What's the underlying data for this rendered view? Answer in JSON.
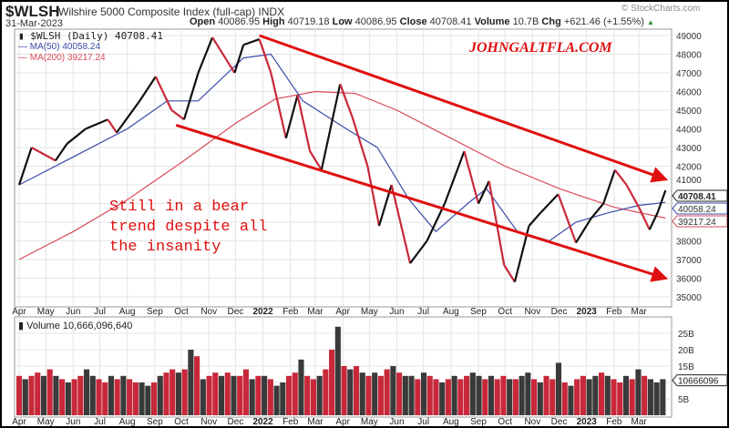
{
  "header": {
    "symbol": "$WLSH",
    "description": "Wilshire 5000 Composite Index (full-cap) INDX",
    "date": "31-Mar-2023",
    "open_label": "Open",
    "open": "40086.95",
    "high_label": "High",
    "high": "40719.18",
    "low_label": "Low",
    "low": "40086.95",
    "close_label": "Close",
    "close": "40708.41",
    "volume_label": "Volume",
    "volume": "10.7B",
    "chg_label": "Chg",
    "chg": "+621.46 (+1.55%)",
    "chg_icon": "up-triangle-icon",
    "source": "© StockCharts.com"
  },
  "watermark": "JOHNGALTFLA.COM",
  "annotation": [
    "Still in a bear",
    "trend despite all",
    "the insanity"
  ],
  "legend": {
    "price": "$WLSH (Daily) 40708.41",
    "ma50": "MA(50) 40058.24",
    "ma200": "MA(200) 39217.24",
    "volume": "Volume 10,666,096,640"
  },
  "colors": {
    "up": "#111111",
    "down": "#c8283a",
    "ma50": "#3a4aa8",
    "ma200": "#d84a5a",
    "arrow": "#e01010",
    "grid": "#e4e4e4"
  },
  "chart_data": [
    {
      "type": "line",
      "title": "$WLSH (Daily)",
      "ylim": [
        34500,
        49600
      ],
      "yticks": [
        "49000",
        "48000",
        "47000",
        "46000",
        "45000",
        "44000",
        "43000",
        "42000",
        "41000",
        "38000",
        "37000",
        "36000",
        "35000"
      ],
      "xticks": [
        {
          "d": "2021-04-01",
          "l": "Apr"
        },
        {
          "d": "2021-05-01",
          "l": "May"
        },
        {
          "d": "2021-06-01",
          "l": "Jun"
        },
        {
          "d": "2021-07-01",
          "l": "Jul"
        },
        {
          "d": "2021-08-01",
          "l": "Aug"
        },
        {
          "d": "2021-09-01",
          "l": "Sep"
        },
        {
          "d": "2021-10-01",
          "l": "Oct"
        },
        {
          "d": "2021-11-01",
          "l": "Nov"
        },
        {
          "d": "2021-12-01",
          "l": "Dec"
        },
        {
          "d": "2022-01-01",
          "l": "2022"
        },
        {
          "d": "2022-02-01",
          "l": "Feb"
        },
        {
          "d": "2022-03-01",
          "l": "Mar"
        },
        {
          "d": "2022-04-01",
          "l": "Apr"
        },
        {
          "d": "2022-05-01",
          "l": "May"
        },
        {
          "d": "2022-06-01",
          "l": "Jun"
        },
        {
          "d": "2022-07-01",
          "l": "Jul"
        },
        {
          "d": "2022-08-01",
          "l": "Aug"
        },
        {
          "d": "2022-09-01",
          "l": "Sep"
        },
        {
          "d": "2022-10-01",
          "l": "Oct"
        },
        {
          "d": "2022-11-01",
          "l": "Nov"
        },
        {
          "d": "2022-12-01",
          "l": "Dec"
        },
        {
          "d": "2023-01-01",
          "l": "2023"
        },
        {
          "d": "2023-02-01",
          "l": "Feb"
        },
        {
          "d": "2023-03-01",
          "l": "Mar"
        }
      ],
      "series": [
        {
          "name": "$WLSH",
          "points": [
            [
              "2021-04-01",
              41000
            ],
            [
              "2021-04-15",
              43000
            ],
            [
              "2021-05-12",
              42300
            ],
            [
              "2021-05-25",
              43200
            ],
            [
              "2021-06-15",
              44000
            ],
            [
              "2021-07-10",
              44500
            ],
            [
              "2021-07-20",
              43800
            ],
            [
              "2021-08-15",
              45500
            ],
            [
              "2021-09-02",
              46800
            ],
            [
              "2021-09-20",
              45000
            ],
            [
              "2021-10-04",
              44500
            ],
            [
              "2021-10-20",
              47000
            ],
            [
              "2021-11-05",
              48900
            ],
            [
              "2021-11-30",
              47000
            ],
            [
              "2021-12-10",
              48500
            ],
            [
              "2021-12-28",
              48800
            ],
            [
              "2022-01-10",
              47000
            ],
            [
              "2022-01-27",
              43500
            ],
            [
              "2022-02-09",
              45800
            ],
            [
              "2022-02-23",
              42800
            ],
            [
              "2022-03-08",
              41800
            ],
            [
              "2022-03-29",
              46400
            ],
            [
              "2022-04-12",
              44600
            ],
            [
              "2022-04-29",
              42000
            ],
            [
              "2022-05-12",
              38800
            ],
            [
              "2022-05-26",
              41000
            ],
            [
              "2022-06-16",
              36800
            ],
            [
              "2022-07-05",
              38000
            ],
            [
              "2022-07-25",
              40000
            ],
            [
              "2022-08-16",
              42800
            ],
            [
              "2022-09-01",
              40000
            ],
            [
              "2022-09-13",
              41200
            ],
            [
              "2022-09-30",
              36700
            ],
            [
              "2022-10-12",
              35800
            ],
            [
              "2022-10-28",
              38800
            ],
            [
              "2022-11-10",
              39500
            ],
            [
              "2022-11-30",
              40500
            ],
            [
              "2022-12-20",
              37900
            ],
            [
              "2023-01-06",
              39200
            ],
            [
              "2023-01-20",
              40000
            ],
            [
              "2023-02-02",
              41800
            ],
            [
              "2023-02-15",
              41000
            ],
            [
              "2023-03-01",
              39800
            ],
            [
              "2023-03-13",
              38600
            ],
            [
              "2023-03-22",
              39500
            ],
            [
              "2023-03-31",
              40708.41
            ]
          ]
        },
        {
          "name": "MA(50)",
          "points": [
            [
              "2021-04-01",
              41000
            ],
            [
              "2021-06-01",
              42500
            ],
            [
              "2021-08-01",
              44000
            ],
            [
              "2021-09-15",
              45500
            ],
            [
              "2021-10-20",
              45500
            ],
            [
              "2021-12-10",
              47800
            ],
            [
              "2022-01-10",
              48000
            ],
            [
              "2022-02-15",
              45500
            ],
            [
              "2022-04-05",
              44000
            ],
            [
              "2022-05-10",
              43000
            ],
            [
              "2022-06-15",
              40200
            ],
            [
              "2022-07-15",
              38500
            ],
            [
              "2022-08-20",
              40000
            ],
            [
              "2022-09-10",
              40800
            ],
            [
              "2022-10-15",
              38500
            ],
            [
              "2022-11-20",
              38000
            ],
            [
              "2022-12-20",
              39000
            ],
            [
              "2023-01-25",
              39500
            ],
            [
              "2023-03-01",
              39900
            ],
            [
              "2023-03-31",
              40058.24
            ]
          ]
        },
        {
          "name": "MA(200)",
          "points": [
            [
              "2021-04-01",
              37000
            ],
            [
              "2021-06-01",
              38500
            ],
            [
              "2021-08-01",
              40200
            ],
            [
              "2021-10-01",
              42200
            ],
            [
              "2021-12-01",
              44300
            ],
            [
              "2022-01-15",
              45600
            ],
            [
              "2022-03-01",
              46000
            ],
            [
              "2022-04-15",
              45900
            ],
            [
              "2022-06-01",
              45000
            ],
            [
              "2022-08-01",
              43500
            ],
            [
              "2022-10-01",
              42000
            ],
            [
              "2022-12-01",
              40800
            ],
            [
              "2023-02-01",
              39800
            ],
            [
              "2023-03-31",
              39217.24
            ]
          ]
        }
      ],
      "trendlines": [
        {
          "from": [
            "2021-12-28",
            49000
          ],
          "to": [
            "2023-03-31",
            41300
          ]
        },
        {
          "from": [
            "2021-09-25",
            44200
          ],
          "to": [
            "2023-03-31",
            36000
          ]
        }
      ],
      "value_badges": [
        "40708.41",
        "40058.24",
        "39217.24"
      ]
    },
    {
      "type": "bar",
      "title": "Volume",
      "ylim": [
        0,
        28
      ],
      "unit": "B",
      "yticks": [
        "25B",
        "20B",
        "15B",
        "5B"
      ],
      "value_badge": "10666096",
      "values": [
        12,
        11,
        12,
        13,
        12,
        14,
        12,
        11,
        10,
        11,
        12,
        14,
        12,
        11,
        10,
        12,
        11,
        12,
        11,
        10,
        10,
        9,
        10,
        12,
        13,
        14,
        13,
        14,
        20,
        18,
        11,
        12,
        13,
        12,
        13,
        12,
        12,
        14,
        11,
        12,
        12,
        11,
        9,
        10,
        12,
        13,
        17,
        12,
        11,
        12,
        14,
        20,
        27,
        15,
        14,
        15,
        13,
        12,
        13,
        12,
        14,
        15,
        13,
        12,
        12,
        11,
        13,
        12,
        11,
        10,
        11,
        12,
        11,
        12,
        13,
        12,
        11,
        12,
        11,
        12,
        11,
        11,
        12,
        13,
        11,
        10,
        12,
        11,
        16,
        10,
        9,
        11,
        12,
        11,
        12,
        13,
        12,
        11,
        10,
        12,
        11,
        14,
        12,
        11,
        10,
        11
      ],
      "dirs": "DUDDUDUDUDDUUDDUDUDDUUDUDDUDUDUDDUDUDDUDUDUUDDUDDUDDUDUDUDUDDUDUUDUDDUDUDDUUDUDDUDUUDUDDUDUDDUUDUDDUDUDU"
    }
  ]
}
